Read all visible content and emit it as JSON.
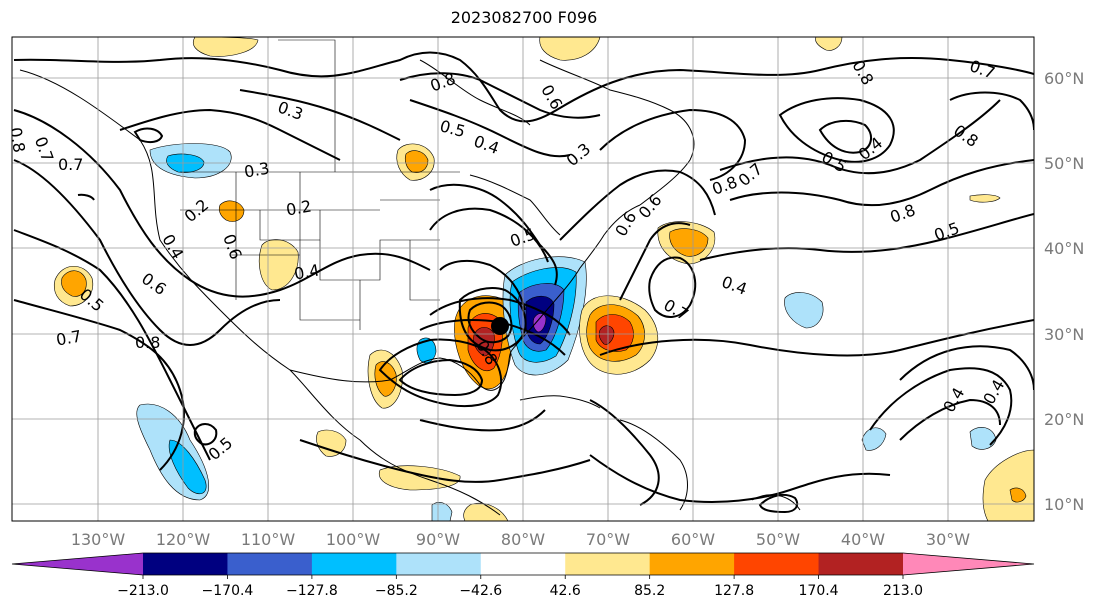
{
  "title": "2023082700 F096",
  "lon_labels": [
    "130°W",
    "120°W",
    "110°W",
    "100°W",
    "90°W",
    "80°W",
    "70°W",
    "60°W",
    "50°W",
    "40°W",
    "30°W"
  ],
  "lat_labels": [
    "60°N",
    "50°N",
    "40°N",
    "30°N",
    "20°N",
    "10°N"
  ],
  "colorbar": {
    "tick_labels": [
      "−213.0",
      "−170.4",
      "−127.8",
      "−85.2",
      "−42.6",
      "42.6",
      "85.2",
      "127.8",
      "170.4",
      "213.0"
    ],
    "colors": [
      "#9932cc",
      "#000080",
      "#3a5fcd",
      "#00bfff",
      "#aee2fa",
      "#ffffff",
      "#ffe890",
      "#ffa500",
      "#ff4500",
      "#b22222",
      "#ff88b8"
    ]
  },
  "contour_labels": [
    "0.8",
    "0.7",
    "0.7",
    "0.8",
    "0.3",
    "0.8",
    "0.5",
    "0.4",
    "0.6",
    "0.3",
    "0.7",
    "0.6",
    "0.8",
    "0.7",
    "0.8",
    "0.5",
    "0.4",
    "0.8",
    "0.5",
    "0.3",
    "0.2",
    "0.2",
    "0.4",
    "0.6",
    "0.5",
    "0.7",
    "0.8",
    "0.4",
    "0.7",
    "0.5",
    "0.4",
    "0.6",
    "0.6",
    "0.8",
    "0.5",
    "0.4",
    "0.4"
  ]
}
